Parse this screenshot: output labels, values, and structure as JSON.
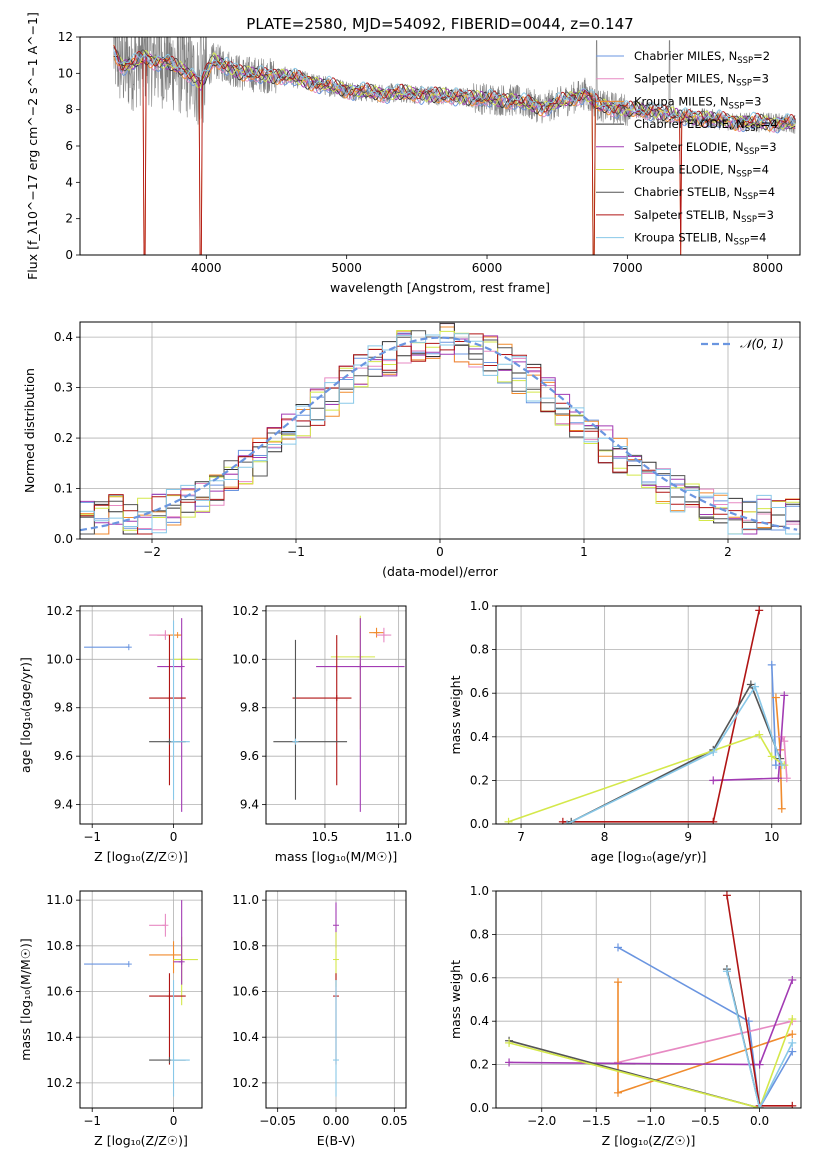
{
  "figure_title": "PLATE=2580, MJD=54092, FIBERID=0044, z=0.147",
  "colors": {
    "Chabrier MILES": "#6a95e0",
    "Salpeter MILES": "#e78ac3",
    "Kroupa MILES": "#f08b2d",
    "Chabrier ELODIE": "#333333",
    "Salpeter ELODIE": "#a23bb3",
    "Kroupa ELODIE": "#d4e84a",
    "Chabrier STELIB": "#555555",
    "Salpeter STELIB": "#b01515",
    "Kroupa STELIB": "#88c8e8",
    "data": "#808080",
    "normal": "#6a95e0"
  },
  "chart_data": [
    {
      "id": "spectrum",
      "type": "line",
      "title": "PLATE=2580, MJD=54092, FIBERID=0044, z=0.147",
      "xlabel": "wavelength [Angstrom, rest frame]",
      "ylabel": "Flux [f_λ10^−17 erg cm^−2 s^−1 A^−1]",
      "xlim": [
        3100,
        8230
      ],
      "ylim": [
        0,
        12
      ],
      "xticks": [
        4000,
        5000,
        6000,
        7000,
        8000
      ],
      "yticks": [
        0,
        2,
        4,
        6,
        8,
        10,
        12
      ],
      "grid": false,
      "legend_position": "right",
      "legend": [
        {
          "label": "Chabrier MILES, N",
          "sub": "SSP",
          "suffix": "=2",
          "color": "#6a95e0"
        },
        {
          "label": "Salpeter MILES, N",
          "sub": "SSP",
          "suffix": "=3",
          "color": "#e78ac3"
        },
        {
          "label": "Kroupa MILES, N",
          "sub": "SSP",
          "suffix": "=3",
          "color": "#f08b2d"
        },
        {
          "label": "Chabrier ELODIE, N",
          "sub": "SSP",
          "suffix": "=4",
          "color": "#333333"
        },
        {
          "label": "Salpeter ELODIE, N",
          "sub": "SSP",
          "suffix": "=3",
          "color": "#a23bb3"
        },
        {
          "label": "Kroupa ELODIE, N",
          "sub": "SSP",
          "suffix": "=4",
          "color": "#d4e84a"
        },
        {
          "label": "Chabrier STELIB, N",
          "sub": "SSP",
          "suffix": "=4",
          "color": "#555555"
        },
        {
          "label": "Salpeter STELIB, N",
          "sub": "SSP",
          "suffix": "=3",
          "color": "#b01515"
        },
        {
          "label": "Kroupa STELIB, N",
          "sub": "SSP",
          "suffix": "=4",
          "color": "#88c8e8"
        }
      ],
      "model_continuum": {
        "x": [
          3340,
          3400,
          3480,
          3560,
          3620,
          3700,
          3800,
          3900,
          3960,
          4050,
          4150,
          4250,
          4400,
          4600,
          4800,
          5000,
          5200,
          5400,
          5600,
          5800,
          6000,
          6200,
          6400,
          6560,
          6700,
          6800,
          7000,
          7200,
          7400,
          7600,
          7800,
          8000,
          8200
        ],
        "y": [
          11.3,
          10.4,
          10.5,
          10.9,
          10.7,
          10.6,
          10.3,
          9.9,
          9.4,
          10.7,
          10.4,
          10.0,
          9.9,
          9.8,
          9.4,
          9.1,
          8.9,
          8.9,
          8.8,
          8.7,
          8.6,
          8.5,
          8.1,
          8.5,
          8.9,
          8.2,
          8.0,
          7.9,
          7.6,
          7.5,
          7.3,
          7.3,
          7.2
        ]
      },
      "model_dropouts": [
        3560,
        3960,
        6760,
        7380
      ],
      "data_spikes": [
        3600,
        3650,
        3960,
        6780,
        7300
      ]
    },
    {
      "id": "residuals",
      "type": "line",
      "xlabel": "(data-model)/error",
      "ylabel": "Normed distribution",
      "xlim": [
        -2.5,
        2.5
      ],
      "ylim": [
        0,
        0.43
      ],
      "xticks": [
        -2,
        -1,
        0,
        1,
        2
      ],
      "yticks": [
        0.0,
        0.1,
        0.2,
        0.3,
        0.4
      ],
      "grid": true,
      "legend_position": "top-right",
      "legend": [
        {
          "label": "𝒩(0, 1)",
          "color": "#6a95e0"
        }
      ],
      "normal_curve": {
        "mu": 0,
        "sigma": 1
      }
    },
    {
      "id": "age-vs-Z",
      "type": "scatter",
      "xlabel": "Z [log₁₀(Z/Z☉)]",
      "ylabel": "age  [log₁₀(age/yr)]",
      "xlim": [
        -1.15,
        0.35
      ],
      "ylim": [
        9.32,
        10.22
      ],
      "xticks": [
        -1,
        0
      ],
      "yticks": [
        9.4,
        9.6,
        9.8,
        10.0,
        10.2
      ],
      "grid": true,
      "points": [
        {
          "x": -0.55,
          "y": 10.05,
          "xerr": [
            0.55,
            0.0
          ],
          "yerr": [
            0.0,
            0.0
          ],
          "color": "#6a95e0"
        },
        {
          "x": 0.05,
          "y": 10.1,
          "xerr": [
            0.25,
            0.05
          ],
          "yerr": [
            0.0,
            0.0
          ],
          "color": "#f08b2d"
        },
        {
          "x": -0.1,
          "y": 10.1,
          "xerr": [
            0.2,
            0.0
          ],
          "yerr": [
            0.02,
            0.02
          ],
          "color": "#e78ac3"
        },
        {
          "x": 0.1,
          "y": 10.0,
          "xerr": [
            0.1,
            0.2
          ],
          "yerr": [
            0.0,
            0.0
          ],
          "color": "#d4e84a"
        },
        {
          "x": 0.1,
          "y": 9.97,
          "xerr": [
            0.3,
            0.0
          ],
          "yerr": [
            0.6,
            0.2
          ],
          "color": "#a23bb3"
        },
        {
          "x": -0.05,
          "y": 9.84,
          "xerr": [
            0.25,
            0.2
          ],
          "yerr": [
            0.36,
            0.26
          ],
          "color": "#b01515"
        },
        {
          "x": -0.05,
          "y": 9.66,
          "xerr": [
            0.25,
            0.2
          ],
          "yerr": [
            0.0,
            0.0
          ],
          "color": "#555555"
        },
        {
          "x": 0.0,
          "y": 9.66,
          "xerr": [
            0.0,
            0.2
          ],
          "yerr": [
            0.24,
            0.5
          ],
          "color": "#88c8e8"
        }
      ]
    },
    {
      "id": "age-vs-mass",
      "type": "scatter",
      "xlabel": "mass [log₁₀(M/M☉)]",
      "ylabel": "",
      "xlim": [
        10.1,
        11.05
      ],
      "ylim": [
        9.32,
        10.22
      ],
      "xticks": [
        10.5,
        11.0
      ],
      "yticks": [
        9.4,
        9.6,
        9.8,
        10.0,
        10.2
      ],
      "grid": true,
      "points": [
        {
          "x": 10.85,
          "y": 10.11,
          "xerr": [
            0.05,
            0.05
          ],
          "yerr": [
            0.02,
            0.02
          ],
          "color": "#f08b2d"
        },
        {
          "x": 10.9,
          "y": 10.1,
          "xerr": [
            0.05,
            0.05
          ],
          "yerr": [
            0.03,
            0.03
          ],
          "color": "#e78ac3"
        },
        {
          "x": 10.74,
          "y": 10.01,
          "xerr": [
            0.2,
            0.1
          ],
          "yerr": [
            0.3,
            0.17
          ],
          "color": "#d4e84a"
        },
        {
          "x": 10.74,
          "y": 9.97,
          "xerr": [
            0.3,
            0.3
          ],
          "yerr": [
            0.6,
            0.2
          ],
          "color": "#a23bb3"
        },
        {
          "x": 10.58,
          "y": 9.84,
          "xerr": [
            0.3,
            0.1
          ],
          "yerr": [
            0.36,
            0.26
          ],
          "color": "#b01515"
        },
        {
          "x": 10.3,
          "y": 9.66,
          "xerr": [
            0.15,
            0.35
          ],
          "yerr": [
            0.24,
            0.42
          ],
          "color": "#555555"
        },
        {
          "x": 10.3,
          "y": 9.66,
          "xerr": [
            0.0,
            0.0
          ],
          "yerr": [
            0.0,
            0.0
          ],
          "color": "#88c8e8"
        }
      ]
    },
    {
      "id": "weight-vs-age",
      "type": "line",
      "xlabel": "age  [log₁₀(age/yr)]",
      "ylabel": "mass weight",
      "xlim": [
        6.7,
        10.35
      ],
      "ylim": [
        0,
        1.0
      ],
      "xticks": [
        7,
        8,
        9,
        10
      ],
      "yticks": [
        0.0,
        0.2,
        0.4,
        0.6,
        0.8,
        1.0
      ],
      "grid": true,
      "series": [
        {
          "color": "#6a95e0",
          "x": [
            10.0,
            10.05
          ],
          "y": [
            0.73,
            0.27
          ]
        },
        {
          "color": "#f08b2d",
          "x": [
            10.05,
            10.1,
            10.12
          ],
          "y": [
            0.58,
            0.34,
            0.07
          ]
        },
        {
          "color": "#e78ac3",
          "x": [
            10.12,
            10.15,
            10.18
          ],
          "y": [
            0.4,
            0.38,
            0.21
          ]
        },
        {
          "color": "#a23bb3",
          "x": [
            9.3,
            10.08,
            10.15
          ],
          "y": [
            0.2,
            0.21,
            0.59
          ]
        },
        {
          "color": "#b01515",
          "x": [
            7.5,
            9.3,
            9.85
          ],
          "y": [
            0.01,
            0.01,
            0.98
          ]
        },
        {
          "color": "#555555",
          "x": [
            7.6,
            9.3,
            9.75,
            10.1
          ],
          "y": [
            0.01,
            0.34,
            0.64,
            0.3
          ]
        },
        {
          "color": "#d4e84a",
          "x": [
            6.85,
            9.85,
            10.0,
            10.15
          ],
          "y": [
            0.01,
            0.41,
            0.31,
            0.27
          ]
        },
        {
          "color": "#88c8e8",
          "x": [
            7.55,
            9.3,
            9.8,
            10.12
          ],
          "y": [
            0.0,
            0.33,
            0.63,
            0.27
          ]
        }
      ]
    },
    {
      "id": "mass-vs-Z",
      "type": "scatter",
      "xlabel": "Z [log₁₀(Z/Z☉)]",
      "ylabel": "mass [log₁₀(M/M☉)]",
      "xlim": [
        -1.15,
        0.35
      ],
      "ylim": [
        10.09,
        11.04
      ],
      "xticks": [
        -1,
        0
      ],
      "yticks": [
        10.2,
        10.4,
        10.6,
        10.8,
        11.0
      ],
      "grid": true,
      "points": [
        {
          "x": -0.55,
          "y": 10.72,
          "xerr": [
            0.55,
            0.0
          ],
          "yerr": [
            0.0,
            0.0
          ],
          "color": "#6a95e0"
        },
        {
          "x": -0.1,
          "y": 10.89,
          "xerr": [
            0.2,
            0.0
          ],
          "yerr": [
            0.05,
            0.05
          ],
          "color": "#e78ac3"
        },
        {
          "x": 0.0,
          "y": 10.76,
          "xerr": [
            0.3,
            0.1
          ],
          "yerr": [
            0.08,
            0.06
          ],
          "color": "#f08b2d"
        },
        {
          "x": 0.1,
          "y": 10.74,
          "xerr": [
            0.1,
            0.2
          ],
          "yerr": [
            0.2,
            0.1
          ],
          "color": "#d4e84a"
        },
        {
          "x": 0.1,
          "y": 10.73,
          "xerr": [
            0.1,
            0.0
          ],
          "yerr": [
            0.1,
            0.27
          ],
          "color": "#a23bb3"
        },
        {
          "x": -0.05,
          "y": 10.58,
          "xerr": [
            0.25,
            0.2
          ],
          "yerr": [
            0.3,
            0.1
          ],
          "color": "#b01515"
        },
        {
          "x": -0.05,
          "y": 10.3,
          "xerr": [
            0.25,
            0.2
          ],
          "yerr": [
            0.0,
            0.0
          ],
          "color": "#555555"
        },
        {
          "x": 0.0,
          "y": 10.3,
          "xerr": [
            0.0,
            0.2
          ],
          "yerr": [
            0.16,
            0.35
          ],
          "color": "#88c8e8"
        }
      ]
    },
    {
      "id": "mass-vs-EBV",
      "type": "scatter",
      "xlabel": "E(B-V)",
      "ylabel": "",
      "xlim": [
        -0.06,
        0.06
      ],
      "ylim": [
        10.09,
        11.04
      ],
      "xticks": [
        -0.05,
        0.0,
        0.05
      ],
      "xticklabels": [
        "−0.05",
        "0.00",
        "0.05"
      ],
      "yticks": [
        10.2,
        10.4,
        10.6,
        10.8,
        11.0
      ],
      "grid": true,
      "points": [
        {
          "x": 0.0,
          "y": 10.89,
          "xerr": [
            0.0,
            0.0
          ],
          "yerr": [
            0.1,
            0.1
          ],
          "color": "#a23bb3"
        },
        {
          "x": 0.0,
          "y": 10.74,
          "xerr": [
            0.0,
            0.0
          ],
          "yerr": [
            0.12,
            0.12
          ],
          "color": "#d4e84a"
        },
        {
          "x": 0.0,
          "y": 10.58,
          "xerr": [
            0.0,
            0.0
          ],
          "yerr": [
            0.3,
            0.1
          ],
          "color": "#b01515"
        },
        {
          "x": 0.0,
          "y": 10.3,
          "xerr": [
            0.0,
            0.0
          ],
          "yerr": [
            0.16,
            0.35
          ],
          "color": "#88c8e8"
        }
      ]
    },
    {
      "id": "weight-vs-Z",
      "type": "line",
      "xlabel": "Z [log₁₀(Z/Z☉)]",
      "ylabel": "mass weight",
      "xlim": [
        -2.42,
        0.38
      ],
      "ylim": [
        0,
        1.0
      ],
      "xticks": [
        -2.0,
        -1.5,
        -1.0,
        -0.5,
        0.0
      ],
      "xticklabels": [
        "−2.0",
        "−1.5",
        "−1.0",
        "−0.5",
        "0.0"
      ],
      "yticks": [
        0.0,
        0.2,
        0.4,
        0.6,
        0.8,
        1.0
      ],
      "grid": true,
      "series": [
        {
          "color": "#6a95e0",
          "x": [
            -1.3,
            -0.1,
            0.0,
            0.3
          ],
          "y": [
            0.74,
            0.4,
            0.0,
            0.26
          ]
        },
        {
          "color": "#e78ac3",
          "x": [
            -1.3,
            0.3
          ],
          "y": [
            0.21,
            0.4
          ]
        },
        {
          "color": "#f08b2d",
          "x": [
            -1.3,
            -1.3,
            0.3
          ],
          "y": [
            0.58,
            0.07,
            0.34
          ]
        },
        {
          "color": "#a23bb3",
          "x": [
            -2.3,
            0.0,
            0.3
          ],
          "y": [
            0.21,
            0.2,
            0.59
          ]
        },
        {
          "color": "#b01515",
          "x": [
            -0.3,
            0.0,
            0.3
          ],
          "y": [
            0.98,
            0.01,
            0.01
          ]
        },
        {
          "color": "#555555",
          "x": [
            -2.3,
            0.0,
            -0.3,
            0.0
          ],
          "y": [
            0.31,
            0.0,
            0.64,
            0.0
          ]
        },
        {
          "color": "#d4e84a",
          "x": [
            -2.3,
            0.0,
            0.3
          ],
          "y": [
            0.3,
            0.0,
            0.41
          ]
        },
        {
          "color": "#88c8e8",
          "x": [
            -0.3,
            0.0,
            0.3
          ],
          "y": [
            0.63,
            0.0,
            0.3
          ]
        }
      ]
    }
  ]
}
